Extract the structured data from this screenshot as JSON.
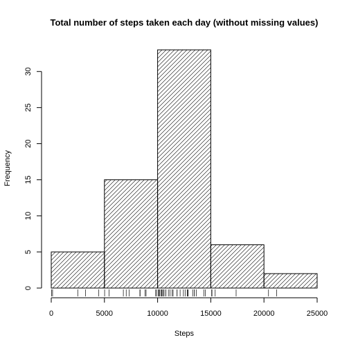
{
  "chart_data": {
    "type": "bar",
    "title": "Total number of steps taken each day (without missing values)",
    "xlabel": "Steps",
    "ylabel": "Frequency",
    "bins": [
      {
        "from": 0,
        "to": 5000,
        "count": 5
      },
      {
        "from": 5000,
        "to": 10000,
        "count": 15
      },
      {
        "from": 10000,
        "to": 15000,
        "count": 33
      },
      {
        "from": 15000,
        "to": 20000,
        "count": 6
      },
      {
        "from": 20000,
        "to": 25000,
        "count": 2
      }
    ],
    "xlim": [
      0,
      25000
    ],
    "ylim": [
      0,
      33
    ],
    "x_ticks": [
      0,
      5000,
      10000,
      15000,
      20000,
      25000
    ],
    "y_ticks": [
      0,
      5,
      10,
      15,
      20,
      25,
      30
    ],
    "fill_pattern": "diagonal-hatch",
    "rug": [
      41,
      126,
      2492,
      3219,
      4472,
      5018,
      5441,
      6778,
      7047,
      7336,
      8334,
      8355,
      8821,
      8918,
      9819,
      9900,
      10056,
      10139,
      10183,
      10304,
      10395,
      10439,
      10571,
      10600,
      10765,
      10766,
      11015,
      11162,
      11352,
      11458,
      11829,
      11834,
      12116,
      12426,
      12608,
      12787,
      12811,
      12883,
      13294,
      13452,
      13460,
      13646,
      14339,
      14478,
      15084,
      15098,
      15110,
      15414,
      17382,
      20427,
      21194
    ]
  }
}
